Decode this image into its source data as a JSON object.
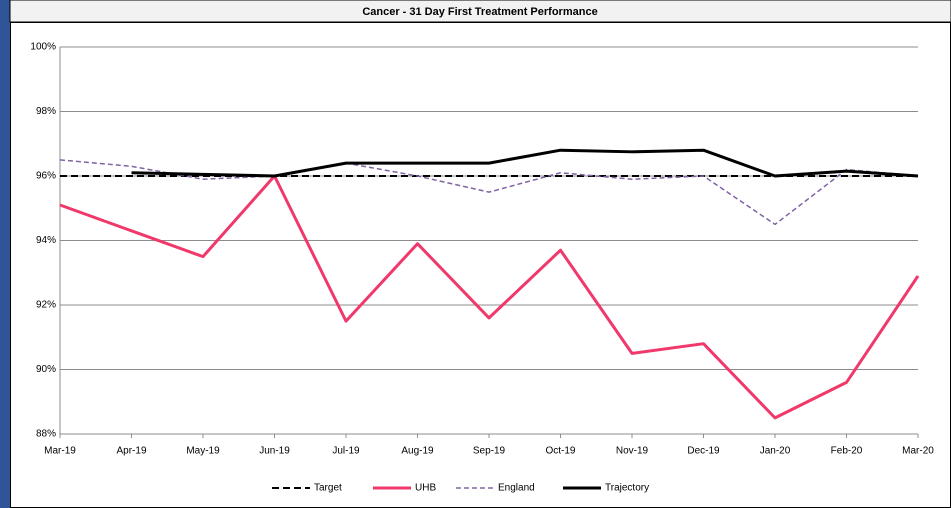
{
  "chart_data": {
    "type": "line",
    "title": "Cancer - 31 Day First Treatment Performance",
    "categories": [
      "Mar-19",
      "Apr-19",
      "May-19",
      "Jun-19",
      "Jul-19",
      "Aug-19",
      "Sep-19",
      "Oct-19",
      "Nov-19",
      "Dec-19",
      "Jan-20",
      "Feb-20",
      "Mar-20"
    ],
    "ylim": [
      88,
      100
    ],
    "yticks": [
      {
        "value": 88,
        "label": "88%"
      },
      {
        "value": 90,
        "label": "90%"
      },
      {
        "value": 92,
        "label": "92%"
      },
      {
        "value": 94,
        "label": "94%"
      },
      {
        "value": 96,
        "label": "96%"
      },
      {
        "value": 98,
        "label": "98%"
      },
      {
        "value": 100,
        "label": "100%"
      }
    ],
    "grid": true,
    "legend": "bottom",
    "series": [
      {
        "name": "Target",
        "color": "#000000",
        "dash": "dashed",
        "values": [
          96,
          96,
          96,
          96,
          96,
          96,
          96,
          96,
          96,
          96,
          96,
          96,
          96
        ]
      },
      {
        "name": "UHB",
        "color": "#f0386b",
        "dash": "solid",
        "values": [
          95.1,
          94.3,
          93.5,
          96.0,
          91.5,
          93.9,
          91.6,
          93.7,
          90.5,
          90.8,
          88.5,
          89.6,
          92.9
        ]
      },
      {
        "name": "England",
        "color": "#8064a2",
        "dash": "dashed",
        "values": [
          96.5,
          96.3,
          95.9,
          96.0,
          96.4,
          96.0,
          95.5,
          96.1,
          95.9,
          96.0,
          94.5,
          96.2,
          96.0
        ]
      },
      {
        "name": "Trajectory",
        "color": "#000000",
        "dash": "solid",
        "values": [
          null,
          96.1,
          96.05,
          96.0,
          96.4,
          96.4,
          96.4,
          96.8,
          96.75,
          96.8,
          96.0,
          96.15,
          96.0
        ]
      }
    ]
  }
}
